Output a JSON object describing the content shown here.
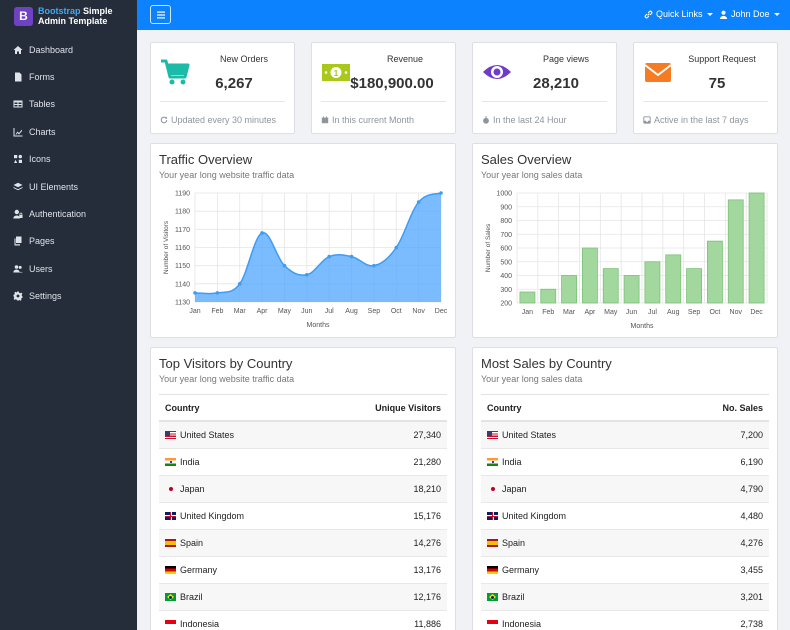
{
  "brand": {
    "logo_letter": "B",
    "line1a": "Bootstrap",
    "line1b": " Simple",
    "line2": "Admin Template"
  },
  "sidebar": {
    "items": [
      {
        "label": "Dashboard",
        "icon": "home-icon"
      },
      {
        "label": "Forms",
        "icon": "file-icon"
      },
      {
        "label": "Tables",
        "icon": "table-icon"
      },
      {
        "label": "Charts",
        "icon": "chart-icon"
      },
      {
        "label": "Icons",
        "icon": "icons-icon"
      },
      {
        "label": "UI Elements",
        "icon": "layers-icon"
      },
      {
        "label": "Authentication",
        "icon": "user-lock-icon"
      },
      {
        "label": "Pages",
        "icon": "copy-icon"
      },
      {
        "label": "Users",
        "icon": "users-icon"
      },
      {
        "label": "Settings",
        "icon": "gear-icon"
      }
    ]
  },
  "topbar": {
    "quick_links": "Quick Links",
    "user": "John Doe"
  },
  "stats": [
    {
      "title": "New Orders",
      "value": "6,267",
      "footer": "Updated every 30 minutes",
      "color": "#1cbba8"
    },
    {
      "title": "Revenue",
      "value": "$180,900.00",
      "footer": "In this current Month",
      "color": "#a8c91a"
    },
    {
      "title": "Page views",
      "value": "28,210",
      "footer": "In the last 24 Hour",
      "color": "#6f3bc9"
    },
    {
      "title": "Support Request",
      "value": "75",
      "footer": "Active in the last 7 days",
      "color": "#f57c22"
    }
  ],
  "traffic": {
    "title": "Traffic Overview",
    "subtitle": "Your year long website traffic data"
  },
  "sales": {
    "title": "Sales Overview",
    "subtitle": "Your year long sales data"
  },
  "chart_data": [
    {
      "type": "area",
      "title": "Traffic Overview",
      "xlabel": "Months",
      "ylabel": "Number of Visitors",
      "categories": [
        "Jan",
        "Feb",
        "Mar",
        "Apr",
        "May",
        "Jun",
        "Jul",
        "Aug",
        "Sep",
        "Oct",
        "Nov",
        "Dec"
      ],
      "values": [
        1135,
        1135,
        1140,
        1168,
        1150,
        1145,
        1155,
        1155,
        1150,
        1160,
        1185,
        1190
      ],
      "ylim": [
        1130,
        1190
      ],
      "yticks": [
        1130,
        1140,
        1150,
        1160,
        1170,
        1180,
        1190
      ],
      "color": "#4ea6ff",
      "grid": true
    },
    {
      "type": "bar",
      "title": "Sales Overview",
      "xlabel": "Months",
      "ylabel": "Number of Sales",
      "categories": [
        "Jan",
        "Feb",
        "Mar",
        "Apr",
        "May",
        "Jun",
        "Jul",
        "Aug",
        "Sep",
        "Oct",
        "Nov",
        "Dec"
      ],
      "values": [
        280,
        300,
        400,
        600,
        450,
        400,
        500,
        550,
        450,
        650,
        950,
        1000
      ],
      "ylim": [
        200,
        1000
      ],
      "yticks": [
        200,
        300,
        400,
        500,
        600,
        700,
        800,
        900,
        1000
      ],
      "color": "#a2d79e",
      "grid": true
    }
  ],
  "visitors_table": {
    "title": "Top Visitors by Country",
    "subtitle": "Your year long website traffic data",
    "col1": "Country",
    "col2": "Unique Visitors",
    "rows": [
      {
        "country": "United States",
        "flag": "us",
        "value": "27,340"
      },
      {
        "country": "India",
        "flag": "in",
        "value": "21,280"
      },
      {
        "country": "Japan",
        "flag": "jp",
        "value": "18,210"
      },
      {
        "country": "United Kingdom",
        "flag": "gb",
        "value": "15,176"
      },
      {
        "country": "Spain",
        "flag": "es",
        "value": "14,276"
      },
      {
        "country": "Germany",
        "flag": "de",
        "value": "13,176"
      },
      {
        "country": "Brazil",
        "flag": "br",
        "value": "12,176"
      },
      {
        "country": "Indonesia",
        "flag": "id",
        "value": "11,886"
      }
    ]
  },
  "sales_table": {
    "title": "Most Sales by Country",
    "subtitle": "Your year long sales data",
    "col1": "Country",
    "col2": "No. Sales",
    "rows": [
      {
        "country": "United States",
        "flag": "us",
        "value": "7,200"
      },
      {
        "country": "India",
        "flag": "in",
        "value": "6,190"
      },
      {
        "country": "Japan",
        "flag": "jp",
        "value": "4,790"
      },
      {
        "country": "United Kingdom",
        "flag": "gb",
        "value": "4,480"
      },
      {
        "country": "Spain",
        "flag": "es",
        "value": "4,276"
      },
      {
        "country": "Germany",
        "flag": "de",
        "value": "3,455"
      },
      {
        "country": "Brazil",
        "flag": "br",
        "value": "3,201"
      },
      {
        "country": "Indonesia",
        "flag": "id",
        "value": "2,738"
      }
    ]
  }
}
